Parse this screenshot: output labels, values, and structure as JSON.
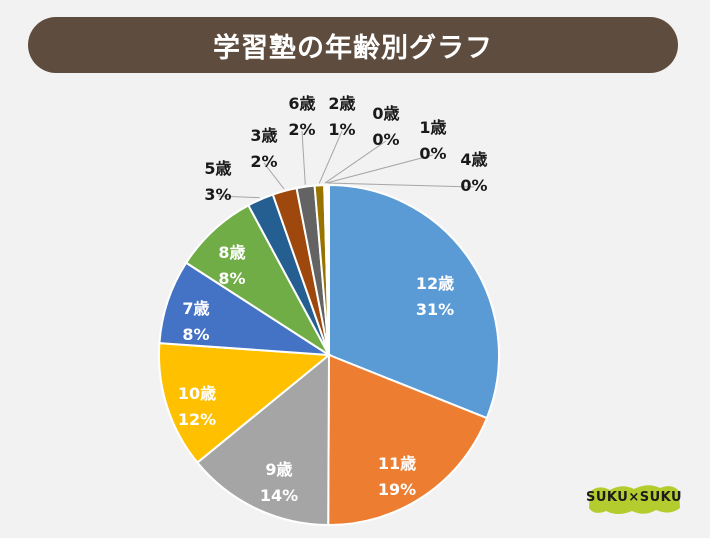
{
  "title": "学習塾の年齢別グラフ",
  "logo_text": "SUKU×SUKU",
  "chart_data": {
    "type": "pie",
    "title": "学習塾の年齢別グラフ",
    "start_angle_deg": 0,
    "direction": "clockwise",
    "slices": [
      {
        "label": "12歳",
        "percent_label": "31%",
        "value": 31,
        "color": "#5b9bd5"
      },
      {
        "label": "11歳",
        "percent_label": "19%",
        "value": 19,
        "color": "#ed7d31"
      },
      {
        "label": "9歳",
        "percent_label": "14%",
        "value": 14,
        "color": "#a5a5a5"
      },
      {
        "label": "10歳",
        "percent_label": "12%",
        "value": 12,
        "color": "#ffc000"
      },
      {
        "label": "7歳",
        "percent_label": "8%",
        "value": 8,
        "color": "#4472c4"
      },
      {
        "label": "8歳",
        "percent_label": "8%",
        "value": 8,
        "color": "#70ad47"
      },
      {
        "label": "5歳",
        "percent_label": "3%",
        "value": 2.5,
        "color": "#255e91"
      },
      {
        "label": "3歳",
        "percent_label": "2%",
        "value": 2.3,
        "color": "#9e480e"
      },
      {
        "label": "6歳",
        "percent_label": "2%",
        "value": 1.7,
        "color": "#636363"
      },
      {
        "label": "2歳",
        "percent_label": "1%",
        "value": 0.9,
        "color": "#997300"
      },
      {
        "label": "0歳",
        "percent_label": "0%",
        "value": 0.15,
        "color": "#264478"
      },
      {
        "label": "1歳",
        "percent_label": "0%",
        "value": 0.15,
        "color": "#43682b"
      },
      {
        "label": "4歳",
        "percent_label": "0%",
        "value": 0.15,
        "color": "#698ed0"
      }
    ]
  }
}
